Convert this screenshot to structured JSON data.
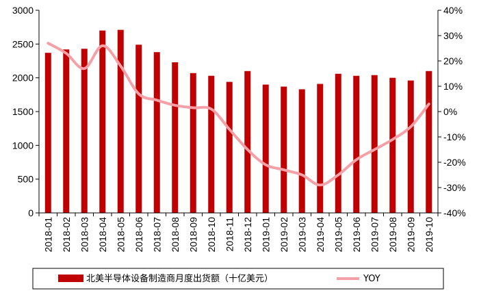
{
  "chart_data": {
    "type": "bar",
    "title": "",
    "categories": [
      "2018-01",
      "2018-02",
      "2018-03",
      "2018-04",
      "2018-05",
      "2018-06",
      "2018-07",
      "2018-08",
      "2018-09",
      "2018-10",
      "2018-11",
      "2018-12",
      "2019-01",
      "2019-02",
      "2019-03",
      "2019-04",
      "2019-05",
      "2019-06",
      "2019-07",
      "2019-08",
      "2019-09",
      "2019-10"
    ],
    "series": [
      {
        "name": "北美半导体设备制造商月度出货额（十亿美元）",
        "type": "bar",
        "axis": "left",
        "color": "#c00000",
        "values": [
          2370,
          2420,
          2430,
          2700,
          2710,
          2490,
          2380,
          2230,
          2070,
          2030,
          1940,
          2100,
          1900,
          1870,
          1830,
          1910,
          2060,
          2030,
          2040,
          2000,
          1960,
          2100
        ]
      },
      {
        "name": "YOY",
        "type": "line",
        "axis": "right",
        "color": "#f4a0a6",
        "values": [
          27,
          23,
          17,
          26,
          18,
          7,
          4.5,
          2.5,
          1.5,
          1,
          -7,
          -15,
          -21,
          -23,
          -25,
          -29,
          -25,
          -19,
          -15,
          -11,
          -6,
          3
        ]
      }
    ],
    "y_left": {
      "min": 0,
      "max": 3000,
      "ticks": [
        0,
        500,
        1000,
        1500,
        2000,
        2500,
        3000
      ]
    },
    "y_right": {
      "min": -40,
      "max": 40,
      "ticks": [
        "-40%",
        "-30%",
        "-20%",
        "-10%",
        "0%",
        "10%",
        "20%",
        "30%",
        "40%"
      ]
    },
    "xlabel": "",
    "ylabel": "",
    "legend": {
      "placement": "bottom"
    }
  }
}
